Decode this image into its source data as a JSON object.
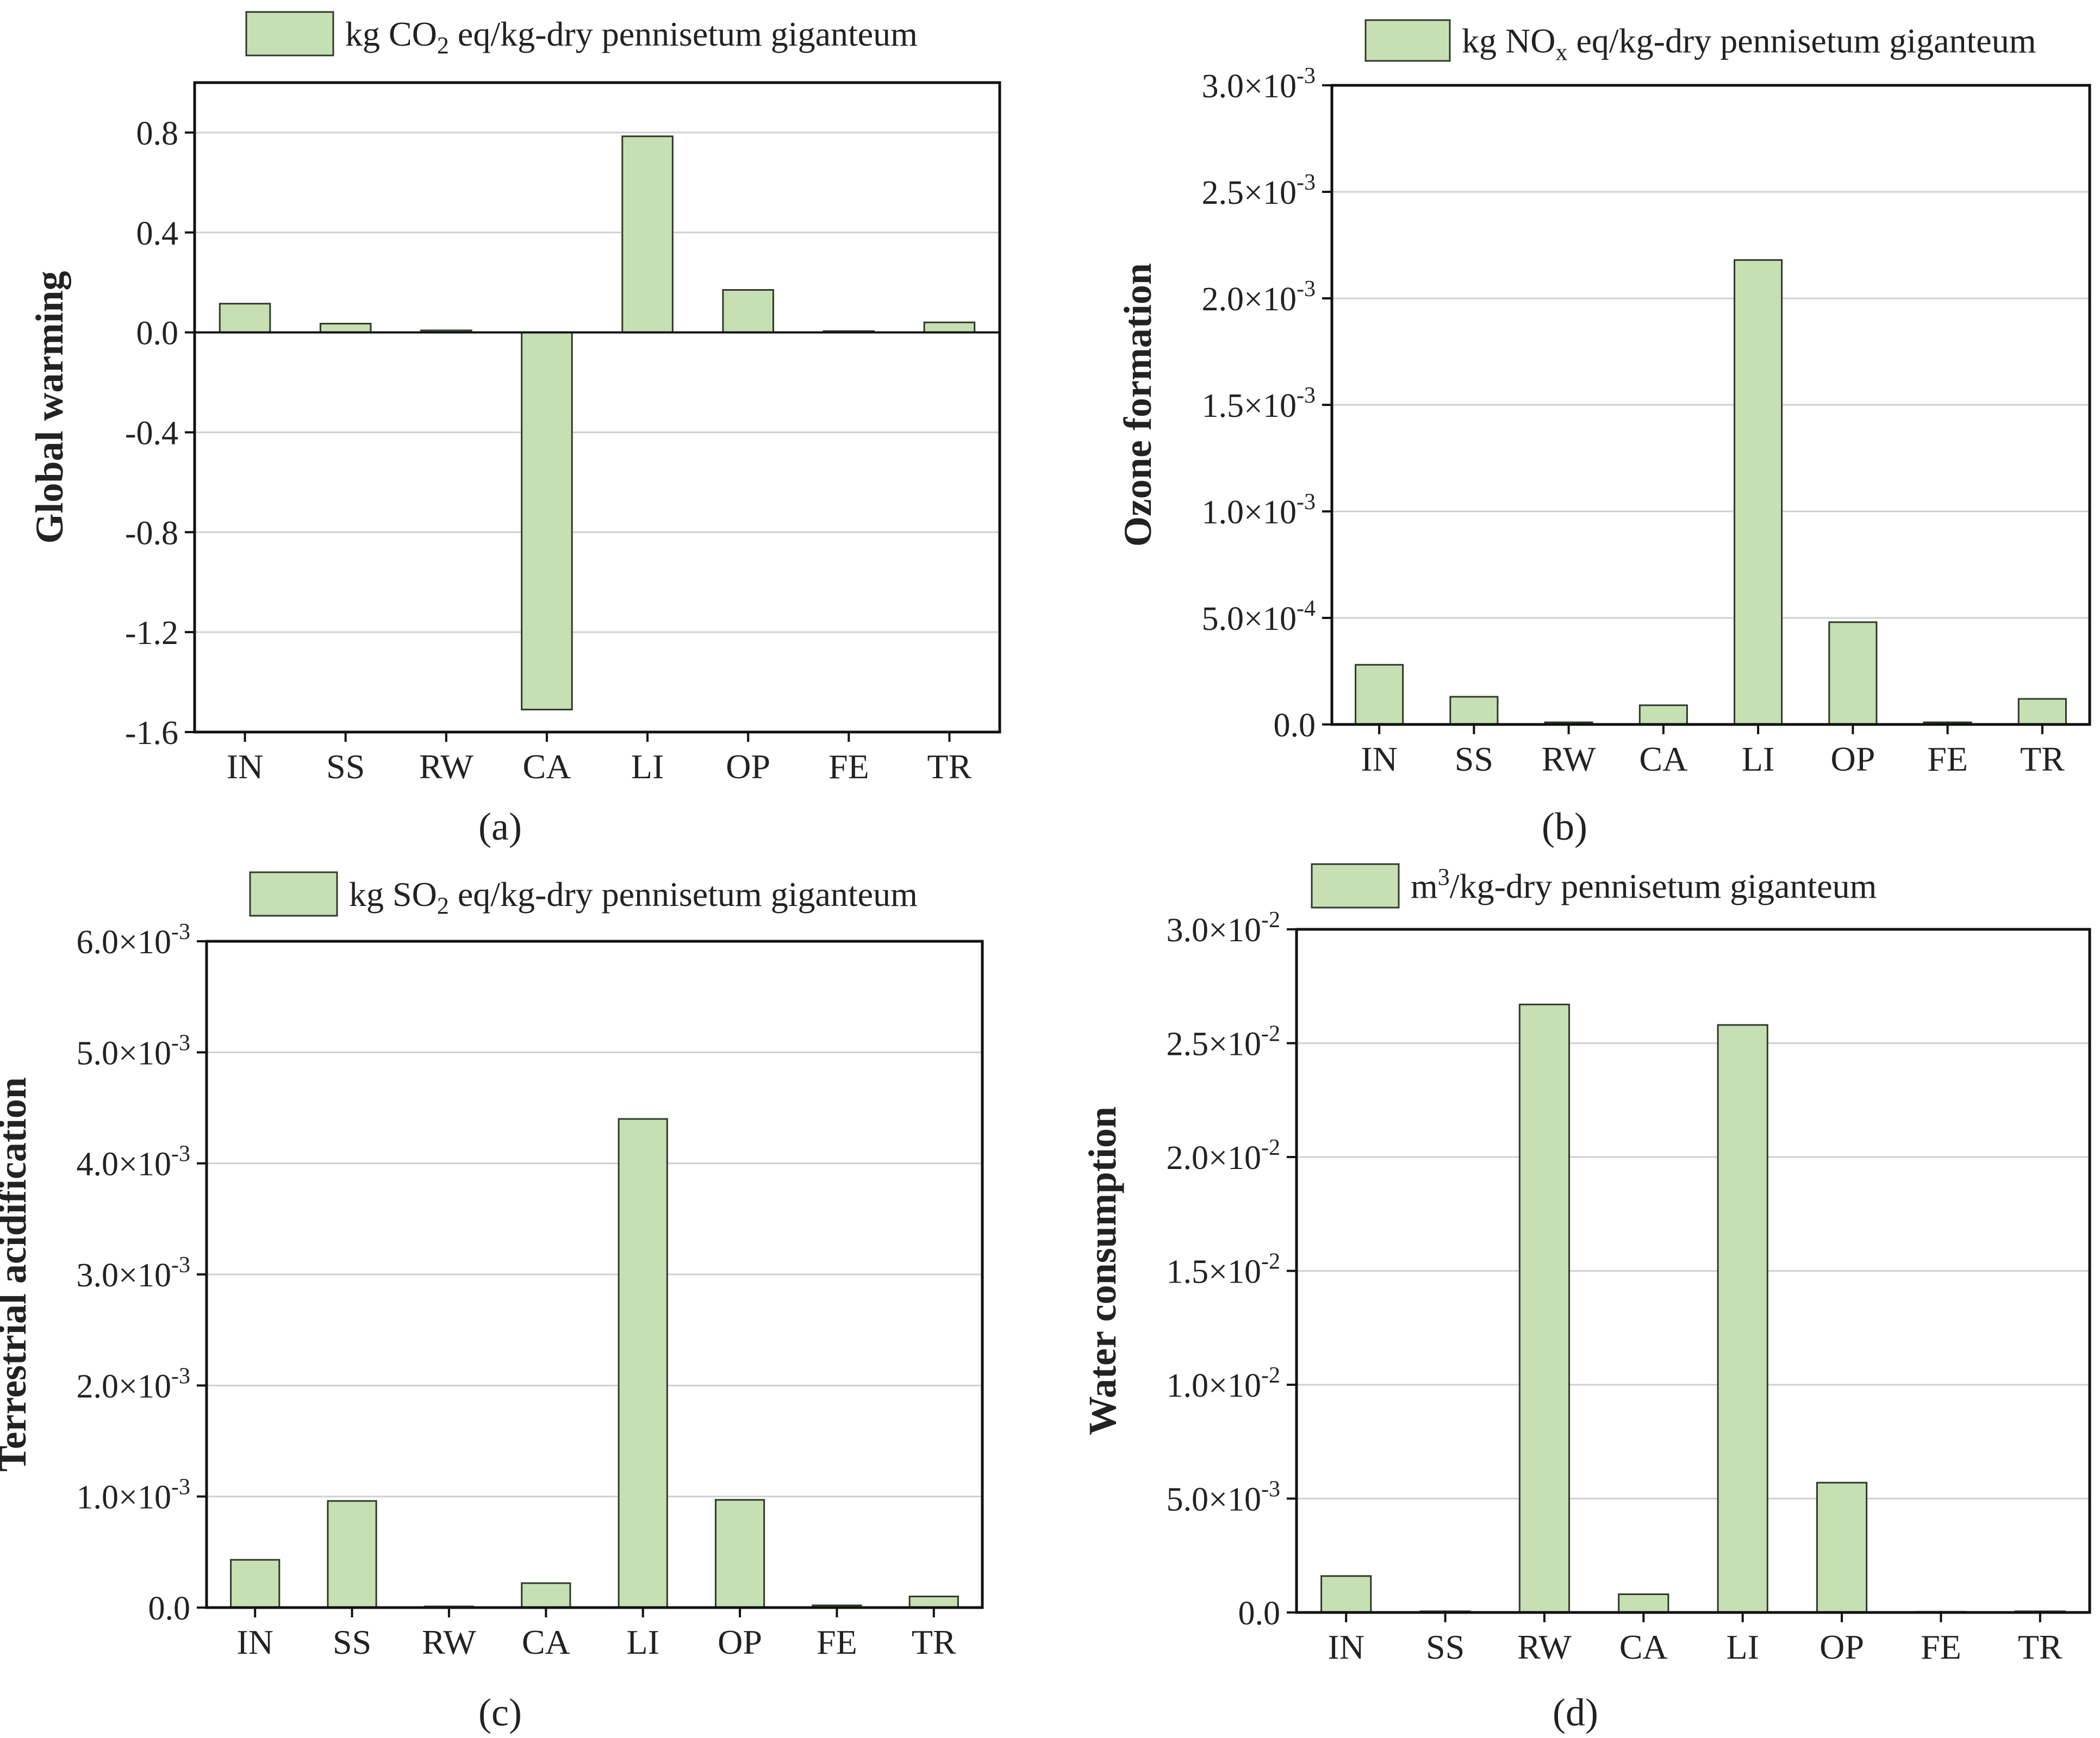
{
  "figure": {
    "bar_color": "#c6e0b4",
    "bar_stroke": "#2f3a2a",
    "grid_color": "#d0d0d0"
  },
  "chart_data": [
    {
      "panel": "a",
      "panel_label": "(a)",
      "type": "bar",
      "ylabel": "Global warming",
      "legend_label": "kg CO2 eq/kg-dry pennisetum giganteum",
      "legend_parts": [
        {
          "text": "kg CO",
          "style": "normal"
        },
        {
          "text": "2",
          "style": "sub"
        },
        {
          "text": " eq/kg-dry pennisetum giganteum",
          "style": "normal"
        }
      ],
      "categories": [
        "IN",
        "SS",
        "RW",
        "CA",
        "LI",
        "OP",
        "FE",
        "TR"
      ],
      "values": [
        0.115,
        0.035,
        0.008,
        -1.51,
        0.785,
        0.17,
        0.005,
        0.04
      ],
      "ylim": [
        -1.6,
        1.0
      ],
      "yticks": [
        -1.6,
        -1.2,
        -0.8,
        -0.4,
        0.0,
        0.4,
        0.8
      ],
      "ytick_labels": [
        {
          "m": "-1.6"
        },
        {
          "m": "-1.2"
        },
        {
          "m": "-0.8"
        },
        {
          "m": "-0.4"
        },
        {
          "m": "0.0"
        },
        {
          "m": "0.4"
        },
        {
          "m": "0.8"
        }
      ],
      "grid": true,
      "zero_line": true
    },
    {
      "panel": "b",
      "panel_label": "(b)",
      "type": "bar",
      "ylabel": "Ozone formation",
      "legend_label": "kg NOx eq/kg-dry pennisetum giganteum",
      "legend_parts": [
        {
          "text": "kg NO",
          "style": "normal"
        },
        {
          "text": "x",
          "style": "sub"
        },
        {
          "text": " eq/kg-dry pennisetum giganteum",
          "style": "normal"
        }
      ],
      "categories": [
        "IN",
        "SS",
        "RW",
        "CA",
        "LI",
        "OP",
        "FE",
        "TR"
      ],
      "values": [
        0.00028,
        0.00013,
        1e-05,
        9e-05,
        0.00218,
        0.00048,
        1e-05,
        0.00012
      ],
      "ylim": [
        0,
        0.003
      ],
      "yticks": [
        0,
        0.0005,
        0.001,
        0.0015,
        0.002,
        0.0025,
        0.003
      ],
      "ytick_labels": [
        {
          "m": "0.0"
        },
        {
          "m": "5.0×10",
          "e": "-4"
        },
        {
          "m": "1.0×10",
          "e": "-3"
        },
        {
          "m": "1.5×10",
          "e": "-3"
        },
        {
          "m": "2.0×10",
          "e": "-3"
        },
        {
          "m": "2.5×10",
          "e": "-3"
        },
        {
          "m": "3.0×10",
          "e": "-3"
        }
      ],
      "grid": true
    },
    {
      "panel": "c",
      "panel_label": "(c)",
      "type": "bar",
      "ylabel": "Terrestrial acidification",
      "legend_label": "kg SO2 eq/kg-dry pennisetum giganteum",
      "legend_parts": [
        {
          "text": "kg SO",
          "style": "normal"
        },
        {
          "text": "2",
          "style": "sub"
        },
        {
          "text": " eq/kg-dry pennisetum giganteum",
          "style": "normal"
        }
      ],
      "categories": [
        "IN",
        "SS",
        "RW",
        "CA",
        "LI",
        "OP",
        "FE",
        "TR"
      ],
      "values": [
        0.00043,
        0.00096,
        1e-05,
        0.00022,
        0.0044,
        0.00097,
        2e-05,
        0.0001
      ],
      "ylim": [
        0,
        0.006
      ],
      "yticks": [
        0,
        0.001,
        0.002,
        0.003,
        0.004,
        0.005,
        0.006
      ],
      "ytick_labels": [
        {
          "m": "0.0"
        },
        {
          "m": "1.0×10",
          "e": "-3"
        },
        {
          "m": "2.0×10",
          "e": "-3"
        },
        {
          "m": "3.0×10",
          "e": "-3"
        },
        {
          "m": "4.0×10",
          "e": "-3"
        },
        {
          "m": "5.0×10",
          "e": "-3"
        },
        {
          "m": "6.0×10",
          "e": "-3"
        }
      ],
      "grid": true
    },
    {
      "panel": "d",
      "panel_label": "(d)",
      "type": "bar",
      "ylabel": "Water consumption",
      "legend_label": "m3/kg-dry pennisetum giganteum",
      "legend_parts": [
        {
          "text": "m",
          "style": "normal"
        },
        {
          "text": "3",
          "style": "sup"
        },
        {
          "text": "/kg-dry pennisetum giganteum",
          "style": "normal"
        }
      ],
      "categories": [
        "IN",
        "SS",
        "RW",
        "CA",
        "LI",
        "OP",
        "FE",
        "TR"
      ],
      "values": [
        0.0016,
        5e-05,
        0.0267,
        0.0008,
        0.0258,
        0.0057,
        3e-05,
        5e-05
      ],
      "ylim": [
        0,
        0.03
      ],
      "yticks": [
        0,
        0.005,
        0.01,
        0.015,
        0.02,
        0.025,
        0.03
      ],
      "ytick_labels": [
        {
          "m": "0.0"
        },
        {
          "m": "5.0×10",
          "e": "-3"
        },
        {
          "m": "1.0×10",
          "e": "-2"
        },
        {
          "m": "1.5×10",
          "e": "-2"
        },
        {
          "m": "2.0×10",
          "e": "-2"
        },
        {
          "m": "2.5×10",
          "e": "-2"
        },
        {
          "m": "3.0×10",
          "e": "-2"
        }
      ],
      "grid": true
    }
  ]
}
